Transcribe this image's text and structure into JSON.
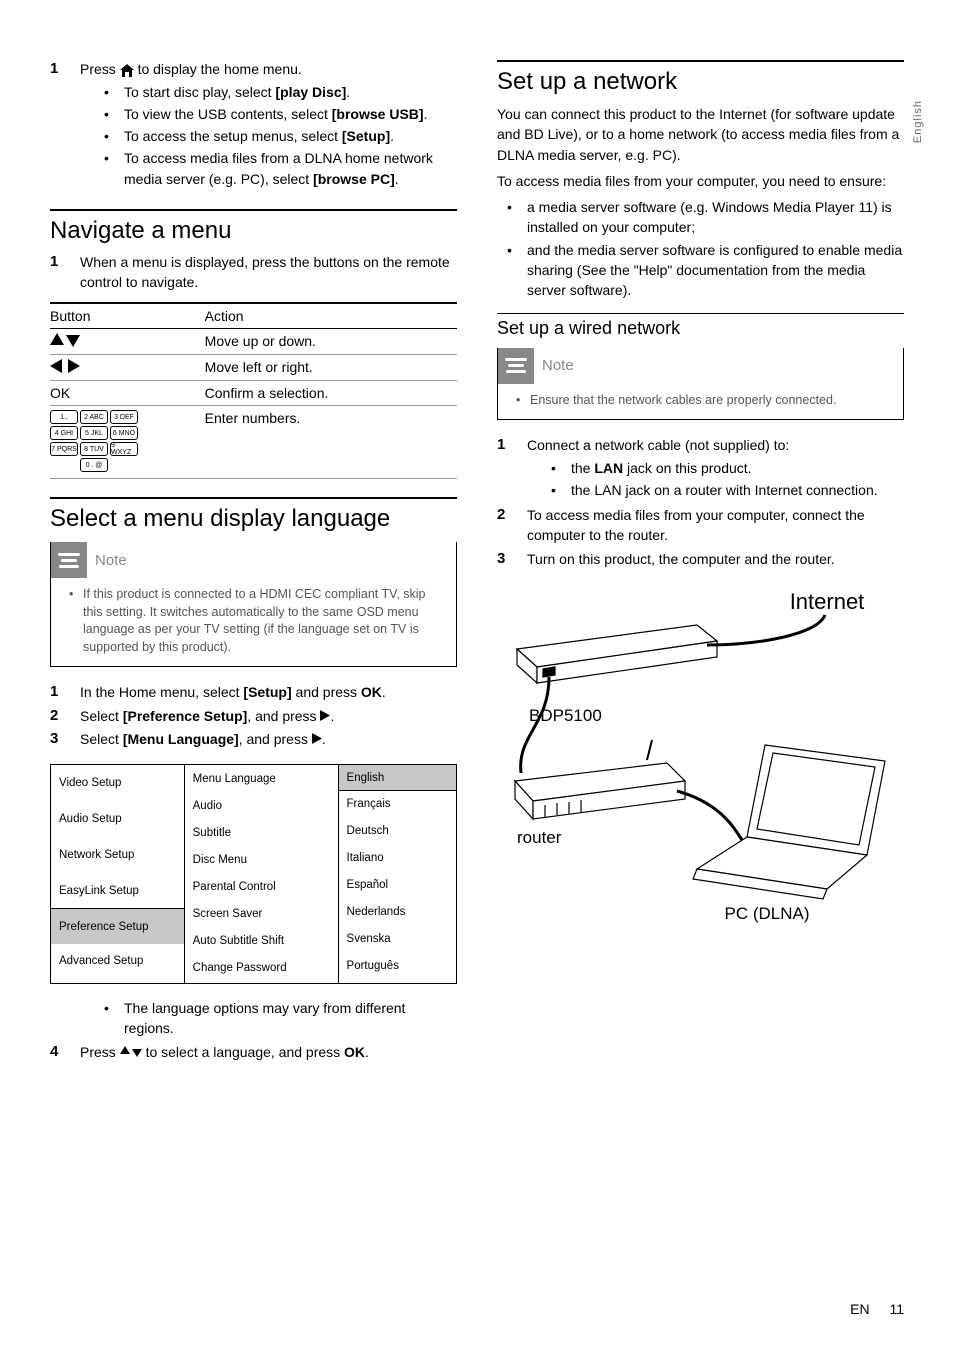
{
  "sideTab": "English",
  "left": {
    "step1": {
      "num": "1",
      "lead": "Press ",
      "tail": " to display the home menu."
    },
    "step1bullets": [
      {
        "pre": "To start disc play, select ",
        "bold": "[play Disc]",
        "post": "."
      },
      {
        "pre": "To view the USB contents, select ",
        "bold": "[browse USB]",
        "post": "."
      },
      {
        "pre": "To access the setup menus, select ",
        "bold": "[Setup]",
        "post": "."
      },
      {
        "pre": "To access media files from a DLNA home network media server (e.g. PC), select ",
        "bold": "[browse PC]",
        "post": "."
      }
    ],
    "nav": {
      "title": "Navigate a menu",
      "step": {
        "num": "1",
        "text": "When a menu is displayed, press the buttons on the remote control to navigate."
      },
      "table": {
        "headers": [
          "Button",
          "Action"
        ],
        "rows": [
          {
            "btn": "updown",
            "action": "Move up or down."
          },
          {
            "btn": "leftright",
            "action": "Move left or right."
          },
          {
            "btn": "ok",
            "okLabel": "OK",
            "action": "Confirm a selection."
          },
          {
            "btn": "numpad",
            "action": "Enter numbers."
          }
        ]
      }
    },
    "lang": {
      "title": "Select a menu display language",
      "noteLabel": "Note",
      "note": "If this product is connected to a HDMI CEC compliant TV, skip this setting. It switches automatically to the same OSD menu language as per your TV setting (if the language set on TV is supported by this product).",
      "steps": [
        {
          "num": "1",
          "pre": "In the Home menu, select ",
          "b1": "[Setup]",
          "mid": " and press ",
          "b2": "OK",
          "post": "."
        },
        {
          "num": "2",
          "pre": "Select ",
          "b1": "[Preference Setup]",
          "mid": ", and press ",
          "arrow": true,
          "post": "."
        },
        {
          "num": "3",
          "pre": "Select ",
          "b1": "[Menu Language]",
          "mid": ", and press ",
          "arrow": true,
          "post": "."
        }
      ],
      "menu": {
        "col1": [
          "Video Setup",
          "Audio Setup",
          "Network Setup",
          "EasyLink Setup",
          "Preference Setup",
          "Advanced Setup"
        ],
        "col1Selected": 4,
        "col2": [
          "Menu Language",
          "Audio",
          "Subtitle",
          "Disc Menu",
          "Parental Control",
          "Screen Saver",
          "Auto Subtitle Shift",
          "Change Password"
        ],
        "col3": [
          "English",
          "Français",
          "Deutsch",
          "Italiano",
          "Español",
          "Nederlands",
          "Svenska",
          "Português"
        ],
        "col3Selected": 0
      },
      "afterBullet": "The language options may vary from different regions.",
      "step4": {
        "num": "4",
        "pre": "Press ",
        "mid": " to select a language, and press ",
        "b": "OK",
        "post": "."
      }
    }
  },
  "right": {
    "net": {
      "title": "Set up a network",
      "p1": "You can connect this product to the Internet (for software update and BD Live), or to a home network (to access media files from a DLNA media server, e.g. PC).",
      "p2": "To access media files from your computer, you need to ensure:",
      "bullets": [
        "a media server software (e.g. Windows Media Player 11) is installed on your computer;",
        "and the media server software is configured to enable media sharing (See the \"Help\" documentation from the media server software)."
      ]
    },
    "wired": {
      "title": "Set up a wired network",
      "noteLabel": "Note",
      "note": "Ensure that the network cables are properly connected.",
      "steps": [
        {
          "num": "1",
          "text": "Connect a network cable (not supplied) to:",
          "subs": [
            {
              "pre": "the ",
              "b": "LAN",
              "post": " jack on this product."
            },
            {
              "pre": "the LAN jack on a router with Internet connection.",
              "b": "",
              "post": ""
            }
          ]
        },
        {
          "num": "2",
          "text": "To access media files from your computer, connect the computer to the router."
        },
        {
          "num": "3",
          "text": "Turn on this product, the computer and the router."
        }
      ],
      "diagram": {
        "internet": "Internet",
        "device": "BDP5100",
        "router": "router",
        "pc": "PC (DLNA)"
      }
    }
  },
  "footer": {
    "lang": "EN",
    "page": "11"
  },
  "numkeys": [
    [
      "1.,",
      "2 ABC",
      "3 DEF"
    ],
    [
      "4 GHI",
      "5 JKL",
      "6 MNO"
    ],
    [
      "7 PQRS",
      "8 TUV",
      "9 WXYZ"
    ],
    [
      "0 . @"
    ]
  ]
}
